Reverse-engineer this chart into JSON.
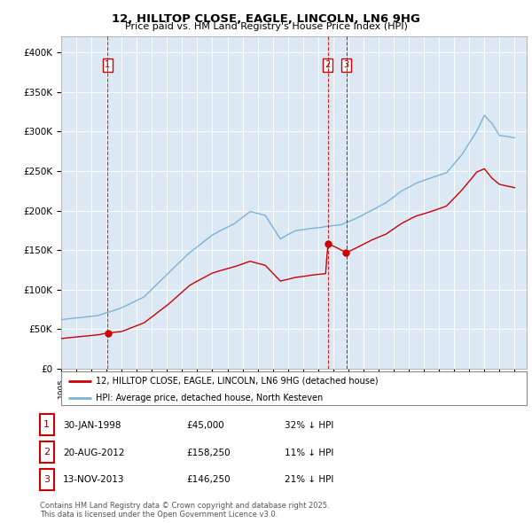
{
  "title": "12, HILLTOP CLOSE, EAGLE, LINCOLN, LN6 9HG",
  "subtitle": "Price paid vs. HM Land Registry's House Price Index (HPI)",
  "plot_bg_color": "#dce9f5",
  "hpi_color": "#7ab3d4",
  "price_color": "#cc0000",
  "ylim": [
    0,
    420000
  ],
  "yticks": [
    0,
    50000,
    100000,
    150000,
    200000,
    250000,
    300000,
    350000,
    400000
  ],
  "ytick_labels": [
    "£0",
    "£50K",
    "£100K",
    "£150K",
    "£200K",
    "£250K",
    "£300K",
    "£350K",
    "£400K"
  ],
  "sale_dates": [
    1998.08,
    2012.64,
    2013.87
  ],
  "sale_prices": [
    45000,
    158250,
    146250
  ],
  "sale_labels": [
    "1",
    "2",
    "3"
  ],
  "xlim_start": 1995.0,
  "xlim_end": 2025.8,
  "legend_line1": "12, HILLTOP CLOSE, EAGLE, LINCOLN, LN6 9HG (detached house)",
  "legend_line2": "HPI: Average price, detached house, North Kesteven",
  "table_data": [
    [
      "1",
      "30-JAN-1998",
      "£45,000",
      "32% ↓ HPI"
    ],
    [
      "2",
      "20-AUG-2012",
      "£158,250",
      "11% ↓ HPI"
    ],
    [
      "3",
      "13-NOV-2013",
      "£146,250",
      "21% ↓ HPI"
    ]
  ],
  "footer": "Contains HM Land Registry data © Crown copyright and database right 2025.\nThis data is licensed under the Open Government Licence v3.0."
}
